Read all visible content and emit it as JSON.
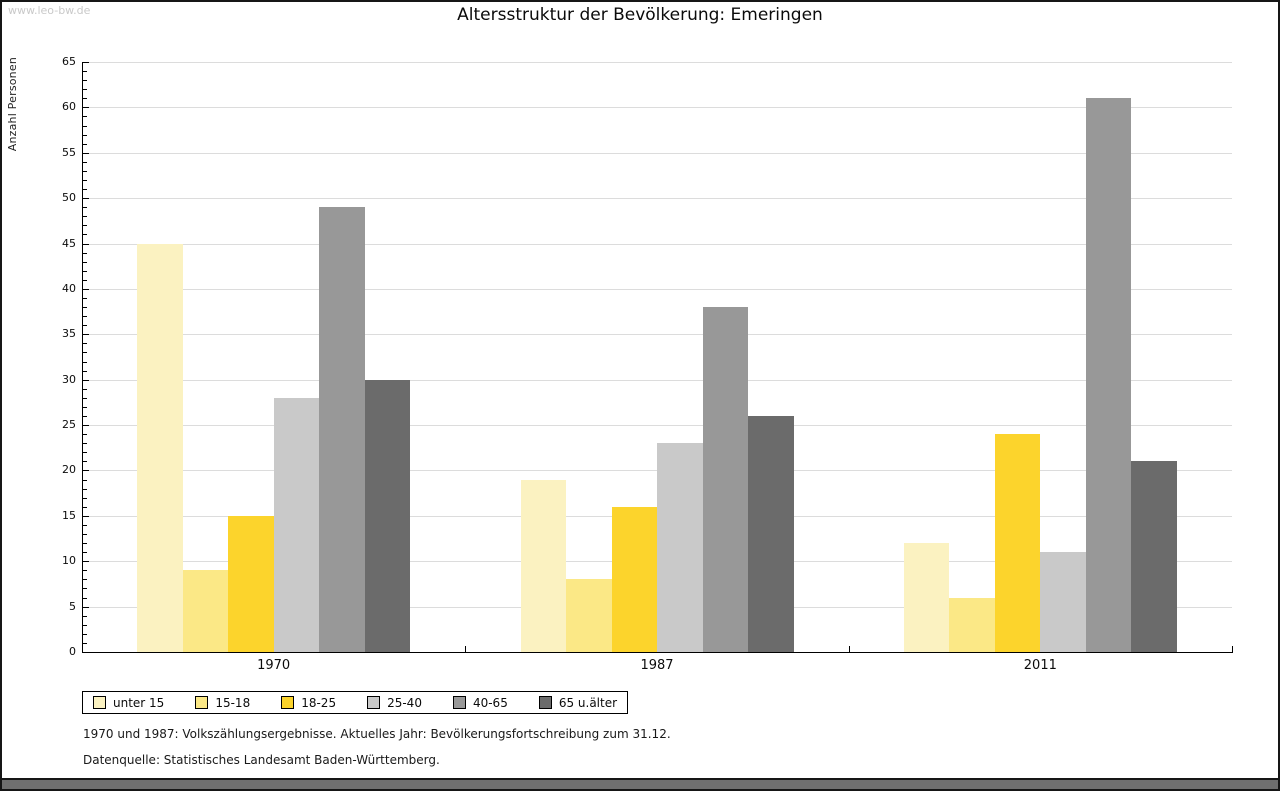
{
  "page": {
    "watermark": "www.leo-bw.de",
    "title": "Altersstruktur der Bevölkerung: Emeringen",
    "footnote_line1": "1970 und 1987: Volkszählungsergebnisse. Aktuelles Jahr: Bevölkerungsfortschreibung zum 31.12.",
    "footnote_line2": "Datenquelle: Statistisches Landesamt Baden-Württemberg."
  },
  "chart_data": {
    "type": "bar",
    "title": "Altersstruktur der Bevölkerung: Emeringen",
    "xlabel": "",
    "ylabel": "Anzahl Personen",
    "categories": [
      "1970",
      "1987",
      "2011"
    ],
    "series": [
      {
        "name": "unter 15",
        "color": "#FBF2C1",
        "values": [
          45,
          19,
          12
        ]
      },
      {
        "name": "15-18",
        "color": "#FBE886",
        "values": [
          9,
          8,
          6
        ]
      },
      {
        "name": "18-25",
        "color": "#FCD42C",
        "values": [
          15,
          16,
          24
        ]
      },
      {
        "name": "25-40",
        "color": "#C9C9C9",
        "values": [
          28,
          23,
          11
        ]
      },
      {
        "name": "40-65",
        "color": "#989898",
        "values": [
          49,
          38,
          61
        ]
      },
      {
        "name": "65 u.älter",
        "color": "#6B6B6B",
        "values": [
          30,
          26,
          21
        ]
      }
    ],
    "ylim": [
      0,
      65
    ],
    "ytick_step": 5,
    "minor_tick_step": 1,
    "grid": true,
    "grid_color": "#DCDCDC",
    "axis_color": "#000000",
    "legend_position": "bottom"
  }
}
